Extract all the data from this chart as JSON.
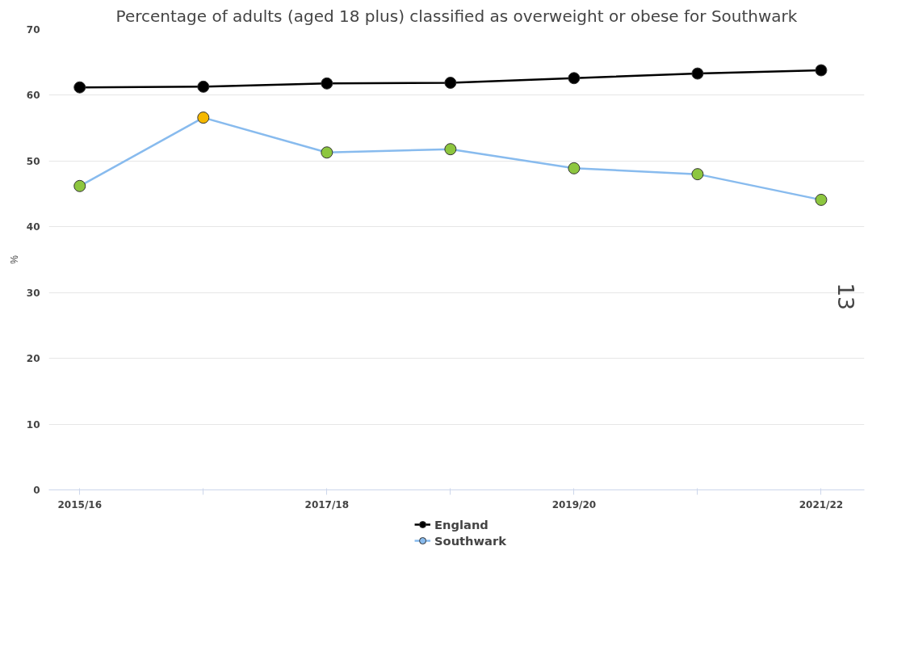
{
  "chart_data": {
    "type": "line",
    "title": "Percentage of adults (aged 18 plus) classified as overweight or obese for Southwark",
    "ylabel": "%",
    "categories": [
      "2015/16",
      null,
      "2017/18",
      null,
      "2019/20",
      null,
      "2021/22"
    ],
    "series": [
      {
        "name": "England",
        "color": "#000000",
        "values": [
          61.2,
          61.3,
          61.8,
          61.9,
          62.6,
          63.3,
          63.8
        ]
      },
      {
        "name": "Southwark",
        "color": "#88bbee",
        "colors": [
          "#8dc63f",
          "#f5b800",
          "#8dc63f",
          "#8dc63f",
          "#8dc63f",
          "#8dc63f",
          "#8dc63f"
        ],
        "values": [
          46.2,
          56.6,
          51.3,
          51.8,
          48.9,
          48.0,
          44.1
        ]
      }
    ],
    "ylim": [
      0,
      70
    ],
    "yticks": [
      0,
      10,
      20,
      30,
      40,
      50,
      60,
      70
    ],
    "grid": "y",
    "legend": "bottom",
    "marker": "circle",
    "line_style": "solid",
    "annotations": [
      "13"
    ]
  }
}
